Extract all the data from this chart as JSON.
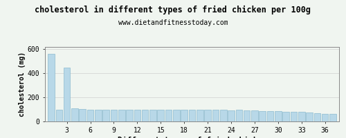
{
  "title": "cholesterol in different types of fried chicken per 100g",
  "subtitle": "www.dietandfitnesstoday.com",
  "xlabel": "Different types of fried chicken",
  "ylabel": "cholesterol (mg)",
  "bar_color": "#b8d8e8",
  "bar_edgecolor": "#7ab0c8",
  "background_color": "#f0f5f0",
  "plot_bg_color": "#f0f5f0",
  "ylim": [
    0,
    620
  ],
  "yticks": [
    0,
    200,
    400,
    600
  ],
  "xticks": [
    3,
    6,
    9,
    12,
    15,
    18,
    21,
    24,
    27,
    30,
    33,
    36
  ],
  "values": [
    560,
    100,
    450,
    110,
    105,
    100,
    100,
    100,
    95,
    100,
    95,
    100,
    95,
    100,
    95,
    100,
    95,
    100,
    95,
    100,
    100,
    95,
    95,
    90,
    95,
    90,
    90,
    85,
    85,
    85,
    80,
    80,
    80,
    75,
    70,
    65,
    65
  ]
}
